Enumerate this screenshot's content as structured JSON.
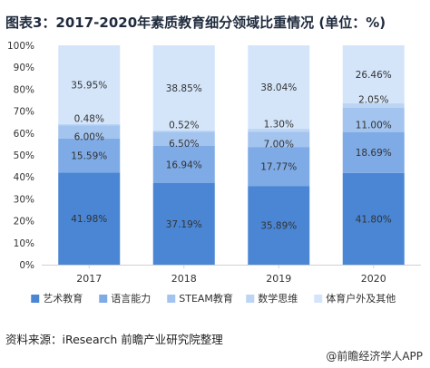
{
  "title": "图表3：2017-2020年素质教育细分领域比重情况 (单位：%)",
  "source": "资料来源：iResearch 前瞻产业研究院整理",
  "brand": "@前瞻经济学人APP",
  "watermark": "前瞻产业研究院",
  "colors": {
    "艺术教育": "#4a86d4",
    "语言能力": "#7eaae6",
    "STEAM教育": "#a3c4ef",
    "数学思维": "#bcd5f5",
    "体育户外及其他": "#d4e5fa",
    "axis": "#d0d0d0",
    "label": "#333333"
  },
  "chart_data": {
    "type": "bar",
    "stacked": true,
    "categories": [
      "2017",
      "2018",
      "2019",
      "2020"
    ],
    "series": [
      {
        "name": "艺术教育",
        "values": [
          41.98,
          37.19,
          35.89,
          41.8
        ],
        "labels": [
          "41.98%",
          "37.19%",
          "35.89%",
          "41.80%"
        ]
      },
      {
        "name": "语言能力",
        "values": [
          15.59,
          16.94,
          17.77,
          18.69
        ],
        "labels": [
          "15.59%",
          "16.94%",
          "17.77%",
          "18.69%"
        ]
      },
      {
        "name": "STEAM教育",
        "values": [
          6.0,
          6.5,
          7.0,
          11.0
        ],
        "labels": [
          "6.00%",
          "6.50%",
          "7.00%",
          "11.00%"
        ]
      },
      {
        "name": "数学思维",
        "values": [
          0.48,
          0.52,
          1.3,
          2.05
        ],
        "labels": [
          "0.48%",
          "0.52%",
          "1.30%",
          "2.05%"
        ]
      },
      {
        "name": "体育户外及其他",
        "values": [
          35.95,
          38.85,
          38.04,
          26.46
        ],
        "labels": [
          "35.95%",
          "38.85%",
          "38.04%",
          "26.46%"
        ]
      }
    ],
    "ylim": [
      0,
      100
    ],
    "yticks": [
      "0%",
      "10%",
      "20%",
      "30%",
      "40%",
      "50%",
      "60%",
      "70%",
      "80%",
      "90%",
      "100%"
    ],
    "legend_position": "bottom",
    "grid": false
  }
}
